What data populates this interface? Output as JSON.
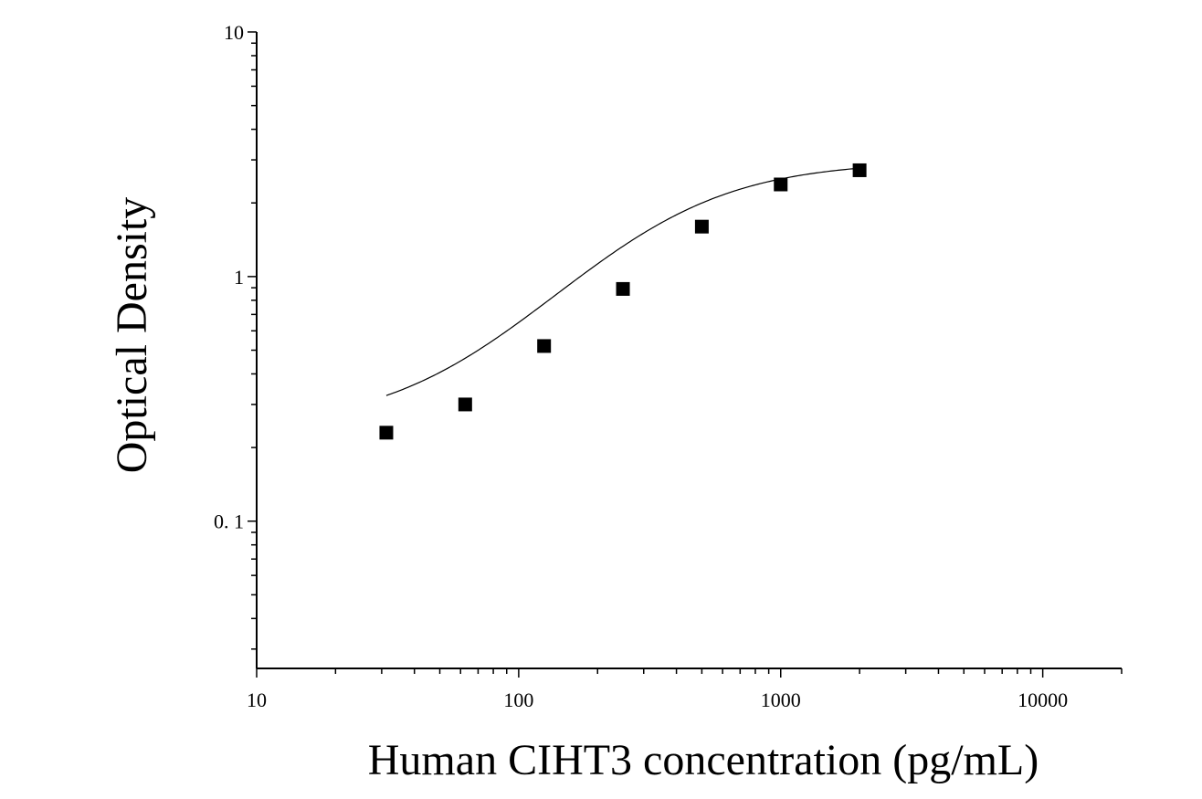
{
  "chart_data": {
    "type": "scatter",
    "title": "",
    "xlabel": "Human CIHT3 concentration (pg/mL)",
    "ylabel": "Optical Density",
    "x_scale": "log",
    "y_scale": "log",
    "xlim": [
      10,
      20000
    ],
    "ylim": [
      0.025,
      10
    ],
    "x_tick_labels": [
      "10",
      "100",
      "1000",
      "10000"
    ],
    "x_tick_values": [
      10,
      100,
      1000,
      10000
    ],
    "y_tick_labels": [
      "0. 1",
      "1",
      "10"
    ],
    "y_tick_values": [
      0.1,
      1,
      10
    ],
    "grid": false,
    "legend": "none",
    "series": [
      {
        "marker": "square",
        "color": "#000000",
        "x": [
          31.25,
          62.5,
          125,
          250,
          500,
          1000,
          2000
        ],
        "y": [
          0.23,
          0.3,
          0.52,
          0.89,
          1.6,
          2.38,
          2.72
        ]
      }
    ],
    "fit_curve": {
      "type": "4PL",
      "color": "#000000",
      "x_range": [
        31.25,
        2000
      ],
      "params": {
        "A": 0.24,
        "D": 2.96,
        "C": 330,
        "B": 1.45
      }
    }
  }
}
